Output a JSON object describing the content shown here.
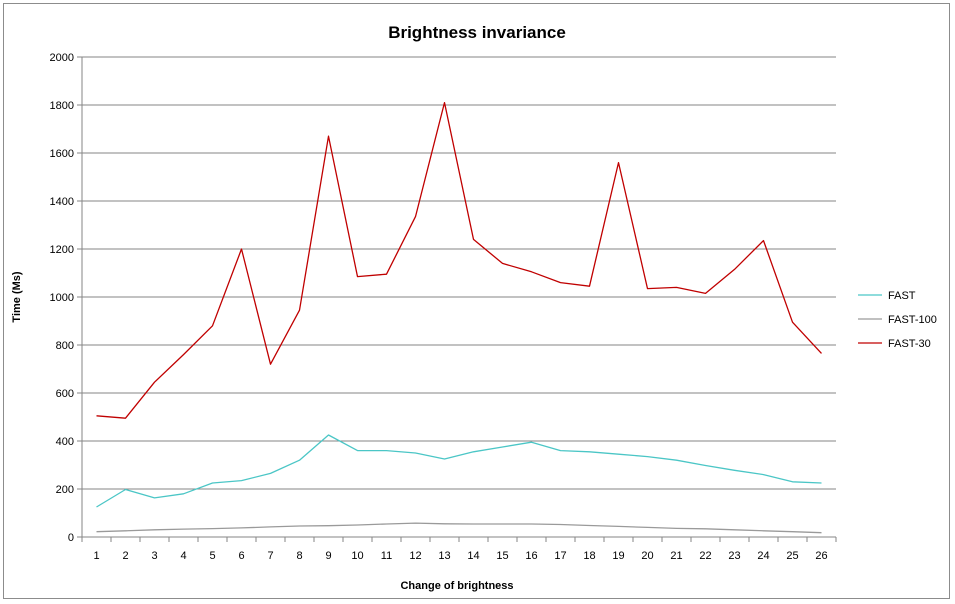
{
  "chart_data": {
    "type": "line",
    "title": "Brightness invariance",
    "xlabel": "Change of brightness",
    "ylabel": "Time (Ms)",
    "x": [
      1,
      2,
      3,
      4,
      5,
      6,
      7,
      8,
      9,
      10,
      11,
      12,
      13,
      14,
      15,
      16,
      17,
      18,
      19,
      20,
      21,
      22,
      23,
      24,
      25,
      26
    ],
    "ylim": [
      0,
      2000
    ],
    "yticks": [
      0,
      200,
      400,
      600,
      800,
      1000,
      1200,
      1400,
      1600,
      1800,
      2000
    ],
    "grid": true,
    "legend": "right",
    "series": [
      {
        "name": "FAST",
        "color": "#4bc6c6",
        "values": [
          125,
          198,
          163,
          180,
          225,
          235,
          265,
          320,
          425,
          360,
          360,
          350,
          325,
          355,
          375,
          395,
          360,
          355,
          345,
          335,
          320,
          298,
          278,
          260,
          230,
          225
        ]
      },
      {
        "name": "FAST-100",
        "color": "#9a9a9a",
        "values": [
          22,
          26,
          30,
          33,
          35,
          38,
          42,
          46,
          47,
          50,
          54,
          58,
          55,
          54,
          54,
          54,
          52,
          48,
          44,
          40,
          36,
          34,
          30,
          26,
          22,
          18
        ]
      },
      {
        "name": "FAST-30",
        "color": "#c00000",
        "values": [
          505,
          495,
          645,
          760,
          880,
          1200,
          720,
          945,
          1670,
          1085,
          1095,
          1335,
          1810,
          1240,
          1140,
          1105,
          1060,
          1045,
          1560,
          1035,
          1040,
          1015,
          1115,
          1235,
          895,
          765
        ]
      }
    ]
  }
}
